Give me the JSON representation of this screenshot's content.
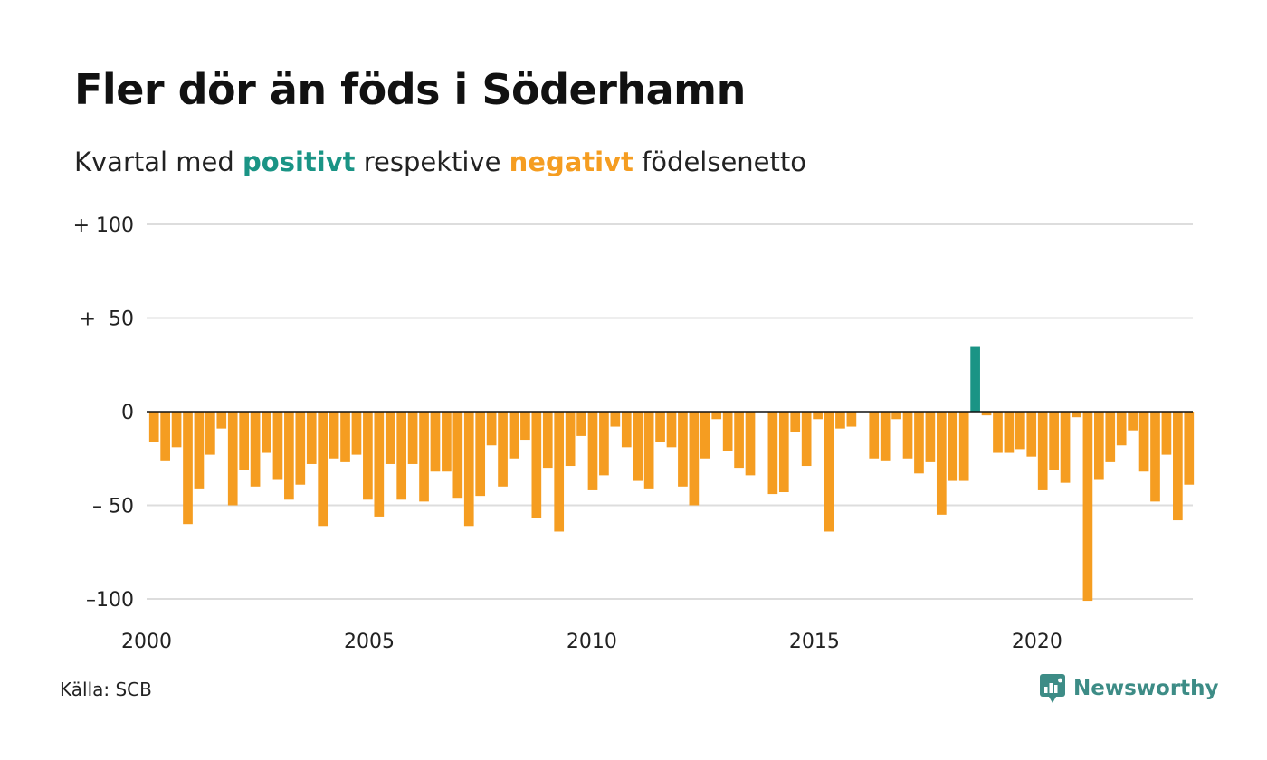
{
  "title": "Fler dör än föds i Söderhamn",
  "subtitle": {
    "prefix": "Kvartal med ",
    "positive": "positivt",
    "middle": " respektive ",
    "negative": "negativt",
    "suffix": " födelsenetto"
  },
  "source": "Källa: SCB",
  "brand": {
    "name": "Newsworthy",
    "icon": "newsworthy-logo-icon"
  },
  "colors": {
    "positive": "#1a9485",
    "negative": "#f59d21",
    "grid": "#dddddd",
    "zero": "#111111",
    "brand": "#3d8c86"
  },
  "chart_data": {
    "type": "bar",
    "title": "Fler dör än föds i Söderhamn",
    "subtitle": "Kvartal med positivt respektive negativt födelsenetto",
    "xlabel": "",
    "ylabel": "",
    "x_start": 2000,
    "x_end": 2023.5,
    "quarters_start": "2000Q1",
    "x_ticks": [
      2000,
      2005,
      2010,
      2015,
      2020
    ],
    "y_ticks": [
      100,
      50,
      0,
      -50,
      -100
    ],
    "y_tick_labels": [
      "+ 100",
      "+  50",
      "0",
      "– 50",
      "–100"
    ],
    "ylim": [
      -100,
      100
    ],
    "grid": true,
    "values": [
      -16,
      -26,
      -19,
      -60,
      -41,
      -23,
      -9,
      -50,
      -31,
      -40,
      -22,
      -36,
      -47,
      -39,
      -28,
      -61,
      -25,
      -27,
      -23,
      -47,
      -56,
      -28,
      -47,
      -28,
      -48,
      -32,
      -32,
      -46,
      -61,
      -45,
      -18,
      -40,
      -25,
      -15,
      -57,
      -30,
      -64,
      -29,
      -13,
      -42,
      -34,
      -8,
      -19,
      -37,
      -41,
      -16,
      -19,
      -40,
      -50,
      -25,
      -4,
      -21,
      -30,
      -34,
      0,
      -44,
      -43,
      -11,
      -29,
      -4,
      -64,
      -9,
      -8,
      0,
      -25,
      -26,
      -4,
      -25,
      -33,
      -27,
      -55,
      -37,
      -37,
      35,
      -2,
      -22,
      -22,
      -20,
      -24,
      -42,
      -31,
      -38,
      -3,
      -101,
      -36,
      -27,
      -18,
      -10,
      -32,
      -48,
      -23,
      -58,
      -39
    ]
  }
}
